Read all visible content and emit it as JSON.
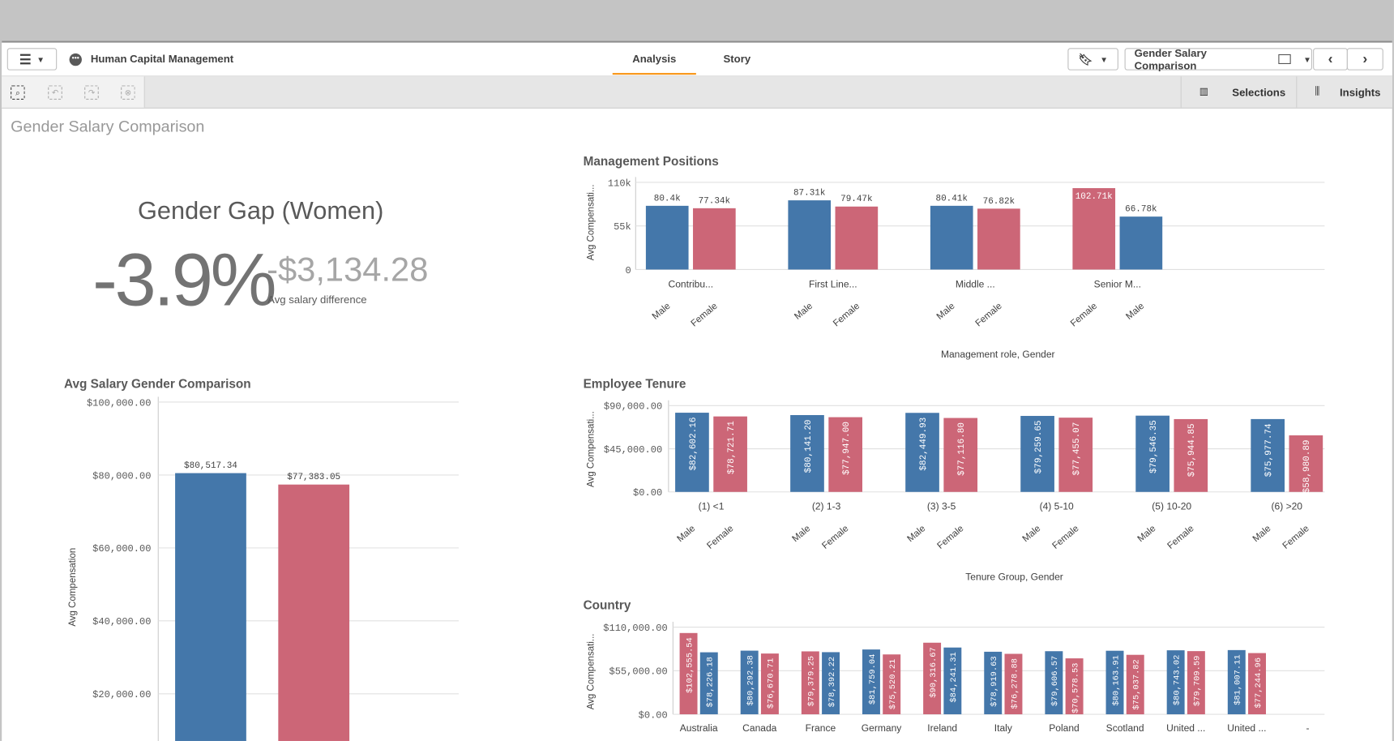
{
  "header": {
    "app_title": "Human Capital Management",
    "tabs": [
      {
        "label": "Analysis",
        "active": true
      },
      {
        "label": "Story",
        "active": false
      }
    ],
    "sheet_selector": "Gender Salary Comparison"
  },
  "toolbar": {
    "selections": "Selections",
    "insights": "Insights"
  },
  "sheet_title": "Gender Salary Comparison",
  "kpi": {
    "title": "Gender Gap (Women)",
    "percent": "-3.9%",
    "amount": "-$3,134.28",
    "amount_label": "Avg salary difference"
  },
  "colors": {
    "male": "#4477aa",
    "female": "#cc6677"
  },
  "chart_data": [
    {
      "id": "avg",
      "type": "bar",
      "title": "Avg Salary Gender Comparison",
      "ylabel": "Avg Compensation",
      "ylim": [
        0,
        100000
      ],
      "yticks": [
        "$20,000.00",
        "$40,000.00",
        "$60,000.00",
        "$80,000.00",
        "$100,000.00"
      ],
      "ytick_values": [
        20000,
        40000,
        60000,
        80000,
        100000
      ],
      "groups": [
        {
          "category": "",
          "bars": [
            {
              "gender": "Male",
              "value": 80517.34,
              "label": "$80,517.34"
            },
            {
              "gender": "Female",
              "value": 77383.05,
              "label": "$77,383.05"
            }
          ]
        }
      ]
    },
    {
      "id": "mgmt",
      "type": "bar",
      "title": "Management Positions",
      "ylabel": "Avg Compensati...",
      "xlabel": "Management role, Gender",
      "ylim": [
        0,
        110000
      ],
      "yticks": [
        "0",
        "55k",
        "110k"
      ],
      "ytick_values": [
        0,
        55000,
        110000
      ],
      "groups": [
        {
          "category": "Contribu...",
          "bars": [
            {
              "gender": "Male",
              "value": 80400,
              "label": "80.4k"
            },
            {
              "gender": "Female",
              "value": 77340,
              "label": "77.34k"
            }
          ]
        },
        {
          "category": "First Line...",
          "bars": [
            {
              "gender": "Male",
              "value": 87310,
              "label": "87.31k"
            },
            {
              "gender": "Female",
              "value": 79470,
              "label": "79.47k"
            }
          ]
        },
        {
          "category": "Middle ...",
          "bars": [
            {
              "gender": "Male",
              "value": 80410,
              "label": "80.41k"
            },
            {
              "gender": "Female",
              "value": 76820,
              "label": "76.82k"
            }
          ]
        },
        {
          "category": "Senior M...",
          "bars": [
            {
              "gender": "Female",
              "value": 102710,
              "label": "102.71k"
            },
            {
              "gender": "Male",
              "value": 66780,
              "label": "66.78k"
            }
          ]
        }
      ]
    },
    {
      "id": "tenure",
      "type": "bar",
      "title": "Employee Tenure",
      "ylabel": "Avg Compensati...",
      "xlabel": "Tenure Group, Gender",
      "ylim": [
        0,
        90000
      ],
      "yticks": [
        "$0.00",
        "$45,000.00",
        "$90,000.00"
      ],
      "ytick_values": [
        0,
        45000,
        90000
      ],
      "groups": [
        {
          "category": "(1) <1",
          "bars": [
            {
              "gender": "Male",
              "value": 82602.16,
              "label": "$82,602.16"
            },
            {
              "gender": "Female",
              "value": 78721.71,
              "label": "$78,721.71"
            }
          ]
        },
        {
          "category": "(2) 1-3",
          "bars": [
            {
              "gender": "Male",
              "value": 80141.2,
              "label": "$80,141.20"
            },
            {
              "gender": "Female",
              "value": 77947.0,
              "label": "$77,947.00"
            }
          ]
        },
        {
          "category": "(3) 3-5",
          "bars": [
            {
              "gender": "Male",
              "value": 82449.93,
              "label": "$82,449.93"
            },
            {
              "gender": "Female",
              "value": 77116.8,
              "label": "$77,116.80"
            }
          ]
        },
        {
          "category": "(4) 5-10",
          "bars": [
            {
              "gender": "Male",
              "value": 79259.65,
              "label": "$79,259.65"
            },
            {
              "gender": "Female",
              "value": 77455.07,
              "label": "$77,455.07"
            }
          ]
        },
        {
          "category": "(5) 10-20",
          "bars": [
            {
              "gender": "Male",
              "value": 79546.35,
              "label": "$79,546.35"
            },
            {
              "gender": "Female",
              "value": 75944.85,
              "label": "$75,944.85"
            }
          ]
        },
        {
          "category": "(6) >20",
          "bars": [
            {
              "gender": "Male",
              "value": 75977.74,
              "label": "$75,977.74"
            },
            {
              "gender": "Female",
              "value": 58980.89,
              "label": "$58,980.89"
            }
          ]
        }
      ]
    },
    {
      "id": "country",
      "type": "bar",
      "title": "Country",
      "ylabel": "Avg Compensati...",
      "ylim": [
        0,
        110000
      ],
      "yticks": [
        "$0.00",
        "$55,000.00",
        "$110,000.00"
      ],
      "ytick_values": [
        0,
        55000,
        110000
      ],
      "groups": [
        {
          "category": "Australia",
          "bars": [
            {
              "gender": "Female",
              "value": 102555.54,
              "label": "$102,555.54"
            },
            {
              "gender": "Male",
              "value": 78226.18,
              "label": "$78,226.18"
            }
          ]
        },
        {
          "category": "Canada",
          "bars": [
            {
              "gender": "Male",
              "value": 80292.38,
              "label": "$80,292.38"
            },
            {
              "gender": "Female",
              "value": 76670.71,
              "label": "$76,670.71"
            }
          ]
        },
        {
          "category": "France",
          "bars": [
            {
              "gender": "Female",
              "value": 79379.25,
              "label": "$79,379.25"
            },
            {
              "gender": "Male",
              "value": 78392.22,
              "label": "$78,392.22"
            }
          ]
        },
        {
          "category": "Germany",
          "bars": [
            {
              "gender": "Male",
              "value": 81759.04,
              "label": "$81,759.04"
            },
            {
              "gender": "Female",
              "value": 75520.21,
              "label": "$75,520.21"
            }
          ]
        },
        {
          "category": "Ireland",
          "bars": [
            {
              "gender": "Female",
              "value": 90316.67,
              "label": "$90,316.67"
            },
            {
              "gender": "Male",
              "value": 84241.31,
              "label": "$84,241.31"
            }
          ]
        },
        {
          "category": "Italy",
          "bars": [
            {
              "gender": "Male",
              "value": 78919.63,
              "label": "$78,919.63"
            },
            {
              "gender": "Female",
              "value": 76278.88,
              "label": "$76,278.88"
            }
          ]
        },
        {
          "category": "Poland",
          "bars": [
            {
              "gender": "Male",
              "value": 79606.57,
              "label": "$79,606.57"
            },
            {
              "gender": "Female",
              "value": 70578.53,
              "label": "$70,578.53"
            }
          ]
        },
        {
          "category": "Scotland",
          "bars": [
            {
              "gender": "Male",
              "value": 80163.91,
              "label": "$80,163.91"
            },
            {
              "gender": "Female",
              "value": 75037.82,
              "label": "$75,037.82"
            }
          ]
        },
        {
          "category": "United ...",
          "bars": [
            {
              "gender": "Male",
              "value": 80743.02,
              "label": "$80,743.02"
            },
            {
              "gender": "Female",
              "value": 79709.59,
              "label": "$79,709.59"
            }
          ]
        },
        {
          "category": "United ...",
          "bars": [
            {
              "gender": "Male",
              "value": 81007.11,
              "label": "$81,007.11"
            },
            {
              "gender": "Female",
              "value": 77244.96,
              "label": "$77,244.96"
            }
          ]
        },
        {
          "category": "-",
          "bars": []
        }
      ]
    }
  ]
}
